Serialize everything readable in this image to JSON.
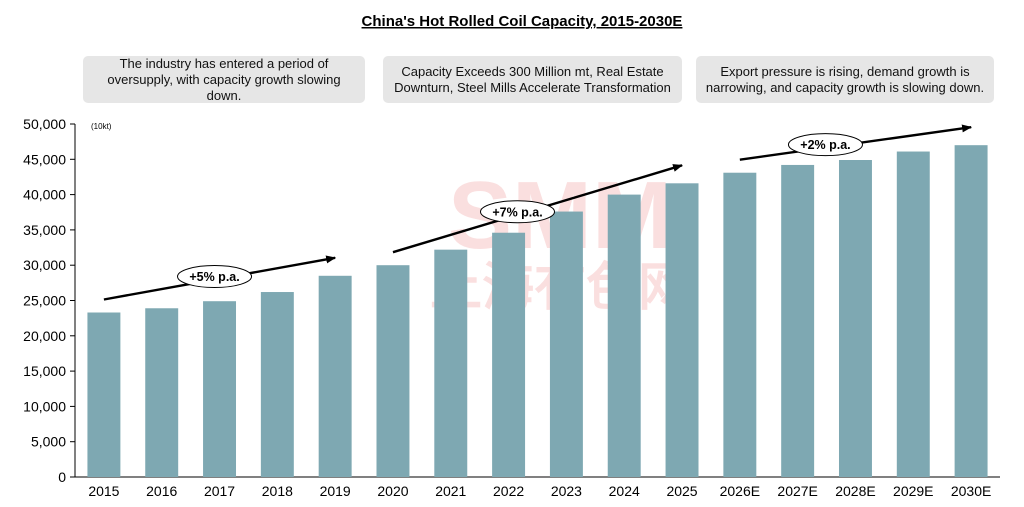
{
  "chart_data": {
    "type": "bar",
    "title": "China's Hot Rolled Coil Capacity, 2015-2030E",
    "unit_label": "(10kt)",
    "xlabel": "",
    "ylabel": "",
    "ylim": [
      0,
      50000
    ],
    "yticks": [
      0,
      5000,
      10000,
      15000,
      20000,
      25000,
      30000,
      35000,
      40000,
      45000,
      50000
    ],
    "ytick_labels": [
      "0",
      "5,000",
      "10,000",
      "15,000",
      "20,000",
      "25,000",
      "30,000",
      "35,000",
      "40,000",
      "45,000",
      "50,000"
    ],
    "categories": [
      "2015",
      "2016",
      "2017",
      "2018",
      "2019",
      "2020",
      "2021",
      "2022",
      "2023",
      "2024",
      "2025",
      "2026E",
      "2027E",
      "2028E",
      "2029E",
      "2030E"
    ],
    "values": [
      23300,
      23900,
      24900,
      26200,
      28500,
      30000,
      32200,
      34600,
      37600,
      40000,
      41600,
      43100,
      44200,
      44900,
      46100,
      47000
    ],
    "bar_color": "#7ea8b2",
    "grid": false,
    "callouts": [
      "The industry has entered a period of oversupply, with capacity growth slowing down.",
      "Capacity Exceeds 300 Million mt, Real Estate Downturn, Steel Mills Accelerate Transformation",
      "Export pressure is rising, demand growth is narrowing, and capacity growth is slowing down."
    ],
    "growth_annotations": [
      {
        "label": "+5% p.a.",
        "from_category": "2015",
        "to_category": "2019"
      },
      {
        "label": "+7% p.a.",
        "from_category": "2020",
        "to_category": "2025"
      },
      {
        "label": "+2% p.a.",
        "from_category": "2026E",
        "to_category": "2030E"
      }
    ],
    "watermark": "SMM 上海有色网"
  }
}
